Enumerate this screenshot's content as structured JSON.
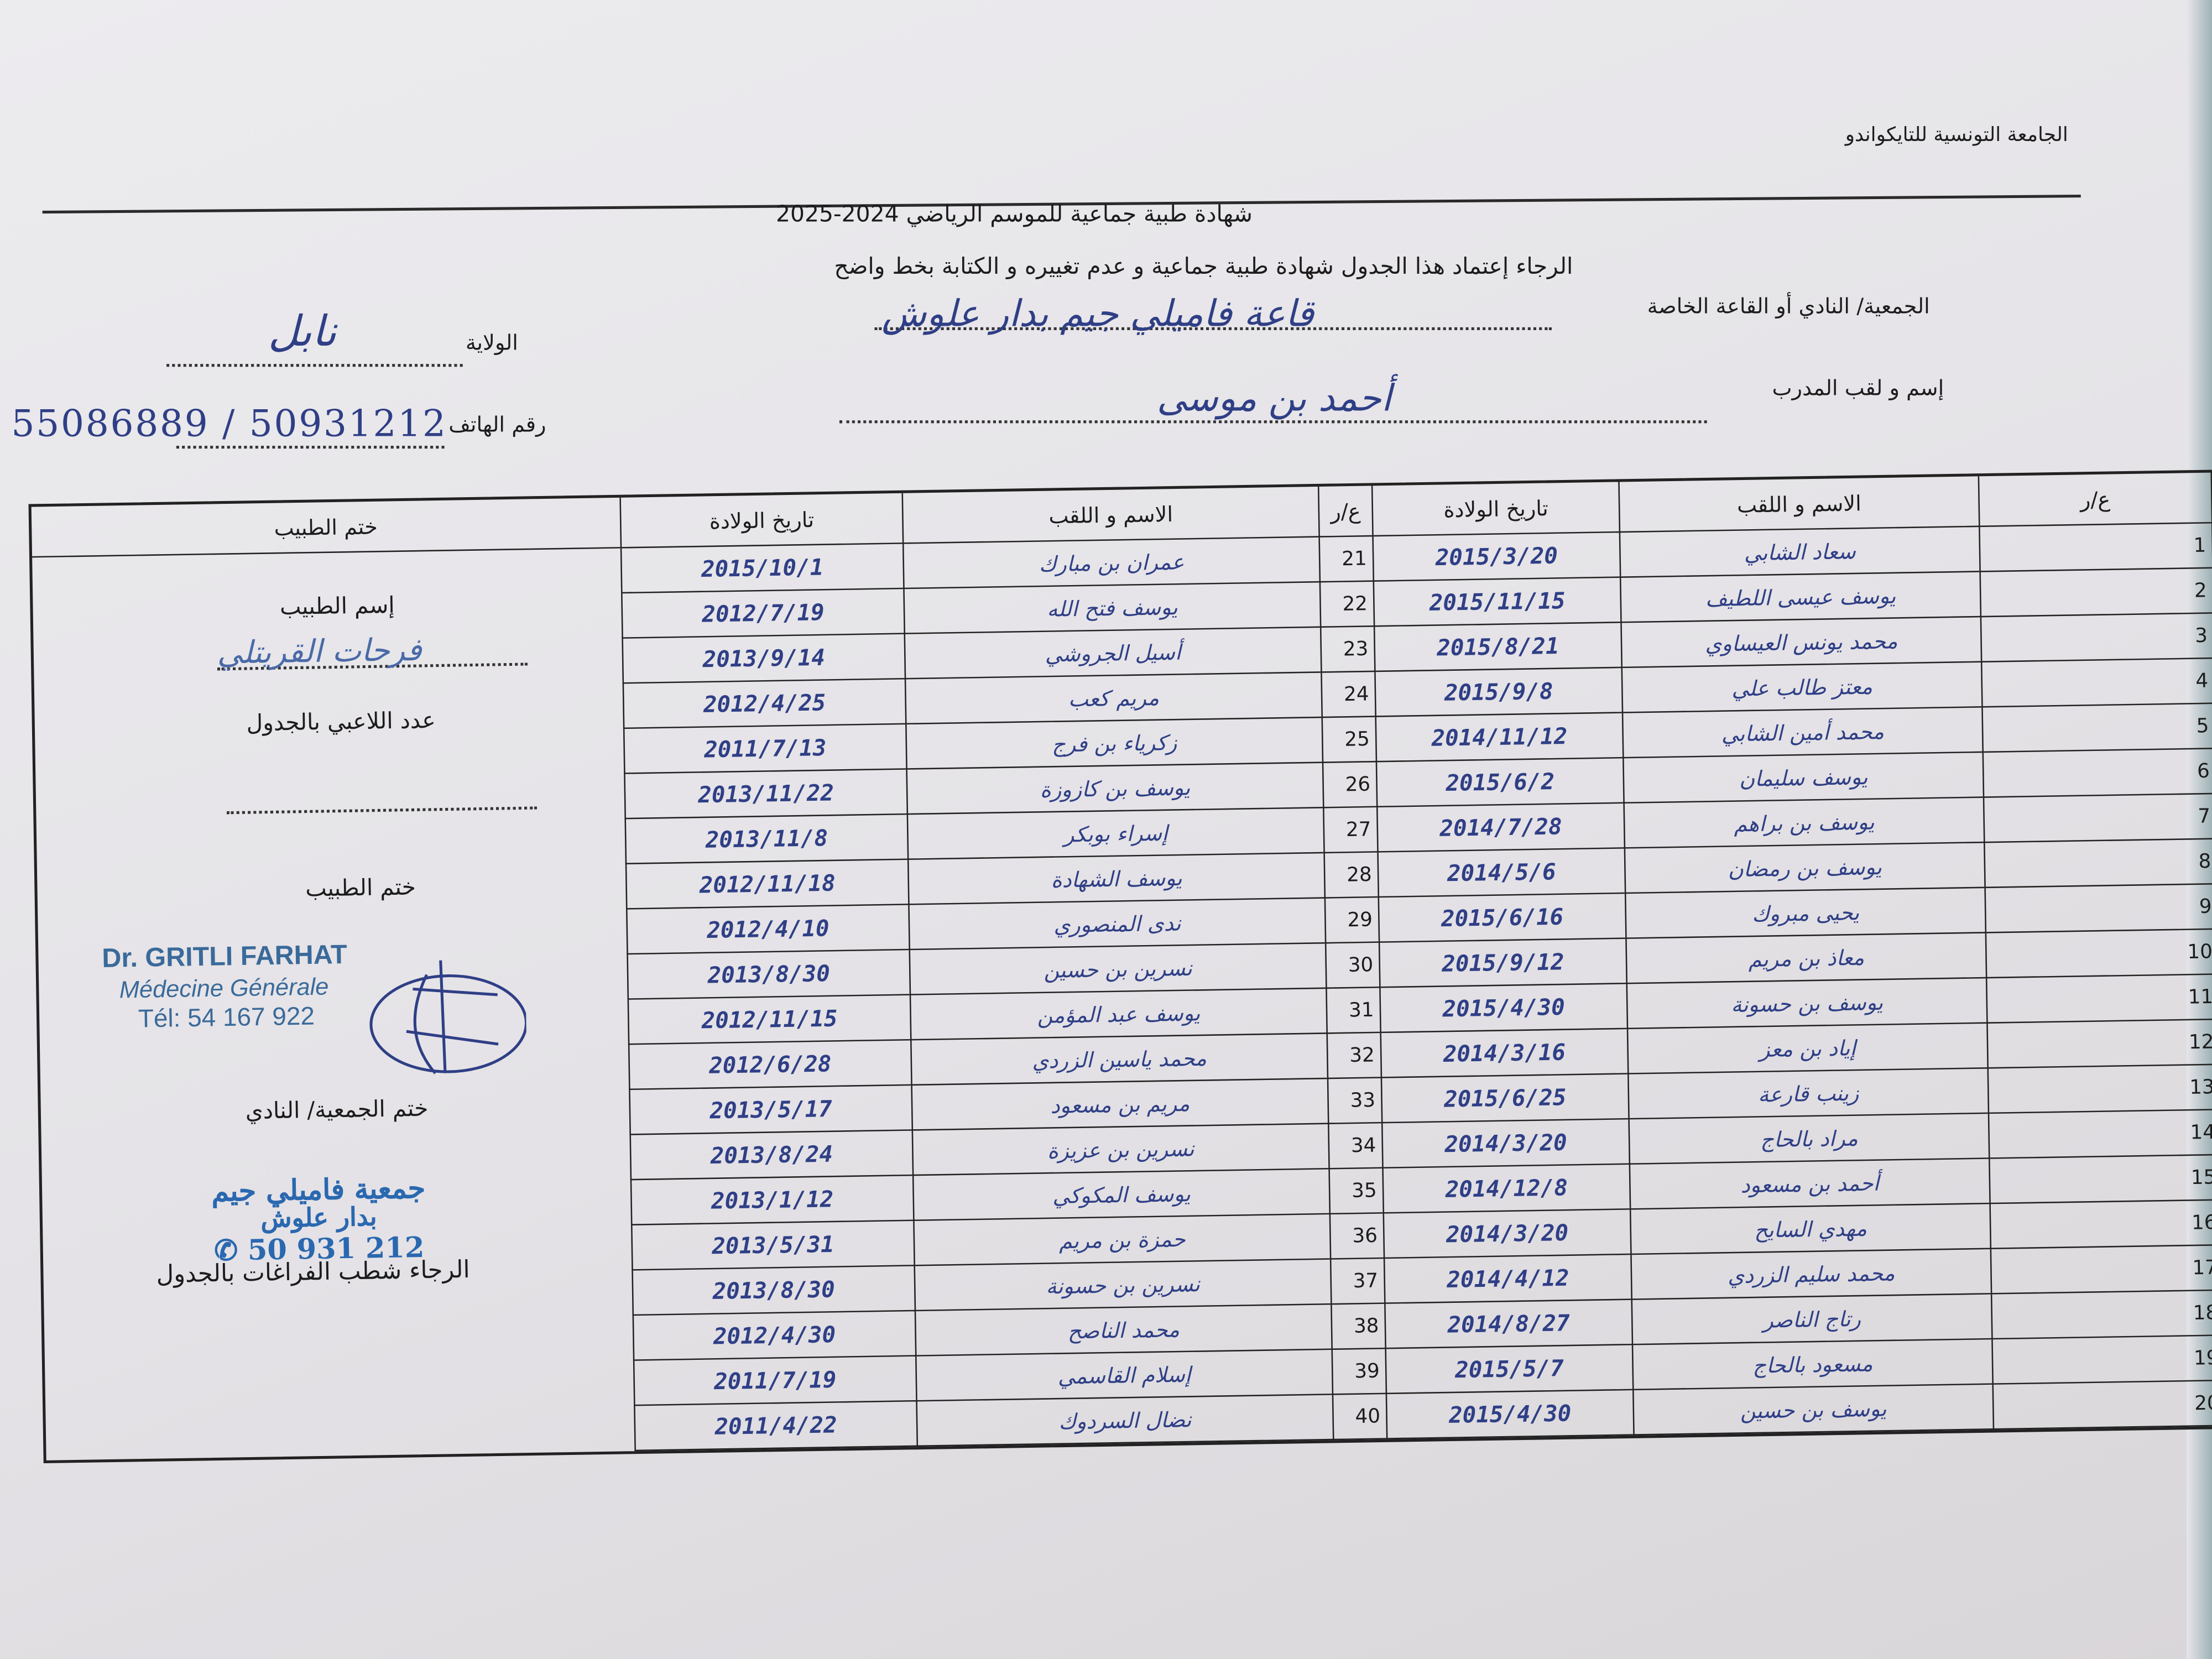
{
  "header": {
    "federation": "الجامعة التونسية للتايكواندو",
    "title": "شهادة طبية جماعية للموسم الرياضي 2024-2025",
    "instruction": "الرجاء إعتماد هذا الجدول شهادة طبية جماعية  و عدم تغييره و الكتابة بخط واضح",
    "club_label": "الجمعية/ النادي أو القاعة الخاصة",
    "club_value": "قاعة فاميلي جيم بدار علوش",
    "state_label": "الولاية",
    "state_value": "نابل",
    "coach_label": "إسم و لقب المدرب",
    "coach_value": "أحمد بن موسى",
    "phone_label": "رقم الهاتف",
    "phone_value": "55086889 / 50931212"
  },
  "table": {
    "headers": {
      "num": "ع/ر",
      "name": "الاسم و اللقب",
      "dob": "تاريخ الولادة",
      "stamp": "ختم الطبيب"
    },
    "rows_left": [
      {
        "num": "1",
        "name": "سعاد الشابي",
        "dob": "2015/3/20"
      },
      {
        "num": "2",
        "name": "يوسف عيسى اللطيف",
        "dob": "2015/11/15"
      },
      {
        "num": "3",
        "name": "محمد يونس العيساوي",
        "dob": "2015/8/21"
      },
      {
        "num": "4",
        "name": "معتز طالب علي",
        "dob": "2015/9/8"
      },
      {
        "num": "5",
        "name": "محمد أمين الشابي",
        "dob": "2014/11/12"
      },
      {
        "num": "6",
        "name": "يوسف سليمان",
        "dob": "2015/6/2"
      },
      {
        "num": "7",
        "name": "يوسف بن براهم",
        "dob": "2014/7/28"
      },
      {
        "num": "8",
        "name": "يوسف بن رمضان",
        "dob": "2014/5/6"
      },
      {
        "num": "9",
        "name": "يحيى مبروك",
        "dob": "2015/6/16"
      },
      {
        "num": "10",
        "name": "معاذ بن مريم",
        "dob": "2015/9/12"
      },
      {
        "num": "11",
        "name": "يوسف بن حسونة",
        "dob": "2015/4/30"
      },
      {
        "num": "12",
        "name": "إياد بن معز",
        "dob": "2014/3/16"
      },
      {
        "num": "13",
        "name": "زينب قارعة",
        "dob": "2015/6/25"
      },
      {
        "num": "14",
        "name": "مراد بالحاج",
        "dob": "2014/3/20"
      },
      {
        "num": "15",
        "name": "أحمد بن مسعود",
        "dob": "2014/12/8"
      },
      {
        "num": "16",
        "name": "مهدي السايح",
        "dob": "2014/3/20"
      },
      {
        "num": "17",
        "name": "محمد سليم الزردي",
        "dob": "2014/4/12"
      },
      {
        "num": "18",
        "name": "رتاج الناصر",
        "dob": "2014/8/27"
      },
      {
        "num": "19",
        "name": "مسعود بالحاج",
        "dob": "2015/5/7"
      },
      {
        "num": "20",
        "name": "يوسف بن حسين",
        "dob": "2015/4/30"
      }
    ],
    "rows_right": [
      {
        "num": "21",
        "name": "عمران بن مبارك",
        "dob": "2015/10/1"
      },
      {
        "num": "22",
        "name": "يوسف فتح الله",
        "dob": "2012/7/19"
      },
      {
        "num": "23",
        "name": "أسيل الجروشي",
        "dob": "2013/9/14"
      },
      {
        "num": "24",
        "name": "مريم كعب",
        "dob": "2012/4/25"
      },
      {
        "num": "25",
        "name": "زكرياء بن فرج",
        "dob": "2011/7/13"
      },
      {
        "num": "26",
        "name": "يوسف بن كازوزة",
        "dob": "2013/11/22"
      },
      {
        "num": "27",
        "name": "إسراء بوبكر",
        "dob": "2013/11/8"
      },
      {
        "num": "28",
        "name": "يوسف الشهادة",
        "dob": "2012/11/18"
      },
      {
        "num": "29",
        "name": "ندى المنصوري",
        "dob": "2012/4/10"
      },
      {
        "num": "30",
        "name": "نسرين بن حسين",
        "dob": "2013/8/30"
      },
      {
        "num": "31",
        "name": "يوسف عبد المؤمن",
        "dob": "2012/11/15"
      },
      {
        "num": "32",
        "name": "محمد ياسين الزردي",
        "dob": "2012/6/28"
      },
      {
        "num": "33",
        "name": "مريم بن مسعود",
        "dob": "2013/5/17"
      },
      {
        "num": "34",
        "name": "نسرين بن عزيزة",
        "dob": "2013/8/24"
      },
      {
        "num": "35",
        "name": "يوسف المكوكي",
        "dob": "2013/1/12"
      },
      {
        "num": "36",
        "name": "حمزة بن مريم",
        "dob": "2013/5/31"
      },
      {
        "num": "37",
        "name": "نسرين بن حسونة",
        "dob": "2013/8/30"
      },
      {
        "num": "38",
        "name": "محمد الناصح",
        "dob": "2012/4/30"
      },
      {
        "num": "39",
        "name": "إسلام القاسمي",
        "dob": "2011/7/19"
      },
      {
        "num": "40",
        "name": "نضال السردوك",
        "dob": "2011/4/22"
      }
    ]
  },
  "doctor_panel": {
    "doctor_name_label": "إسم الطبيب",
    "doctor_name_value": "فرحات القريتلي",
    "players_count_label": "عدد اللاعبي بالجدول",
    "doctor_stamp_label": "ختم الطبيب",
    "doctor_stamp": {
      "line1": "Dr. GRITLI FARHAT",
      "line2": "Médecine Générale",
      "line3": "Tél: 54 167 922"
    },
    "club_stamp_label": "ختم الجمعية/ النادي",
    "club_stamp": {
      "line1": "جمعية فاميلي جيم",
      "line2": "بدار علوش",
      "phone": "50 931 212"
    },
    "footer_note": "الرجاء شطب الفراغات بالجدول"
  }
}
